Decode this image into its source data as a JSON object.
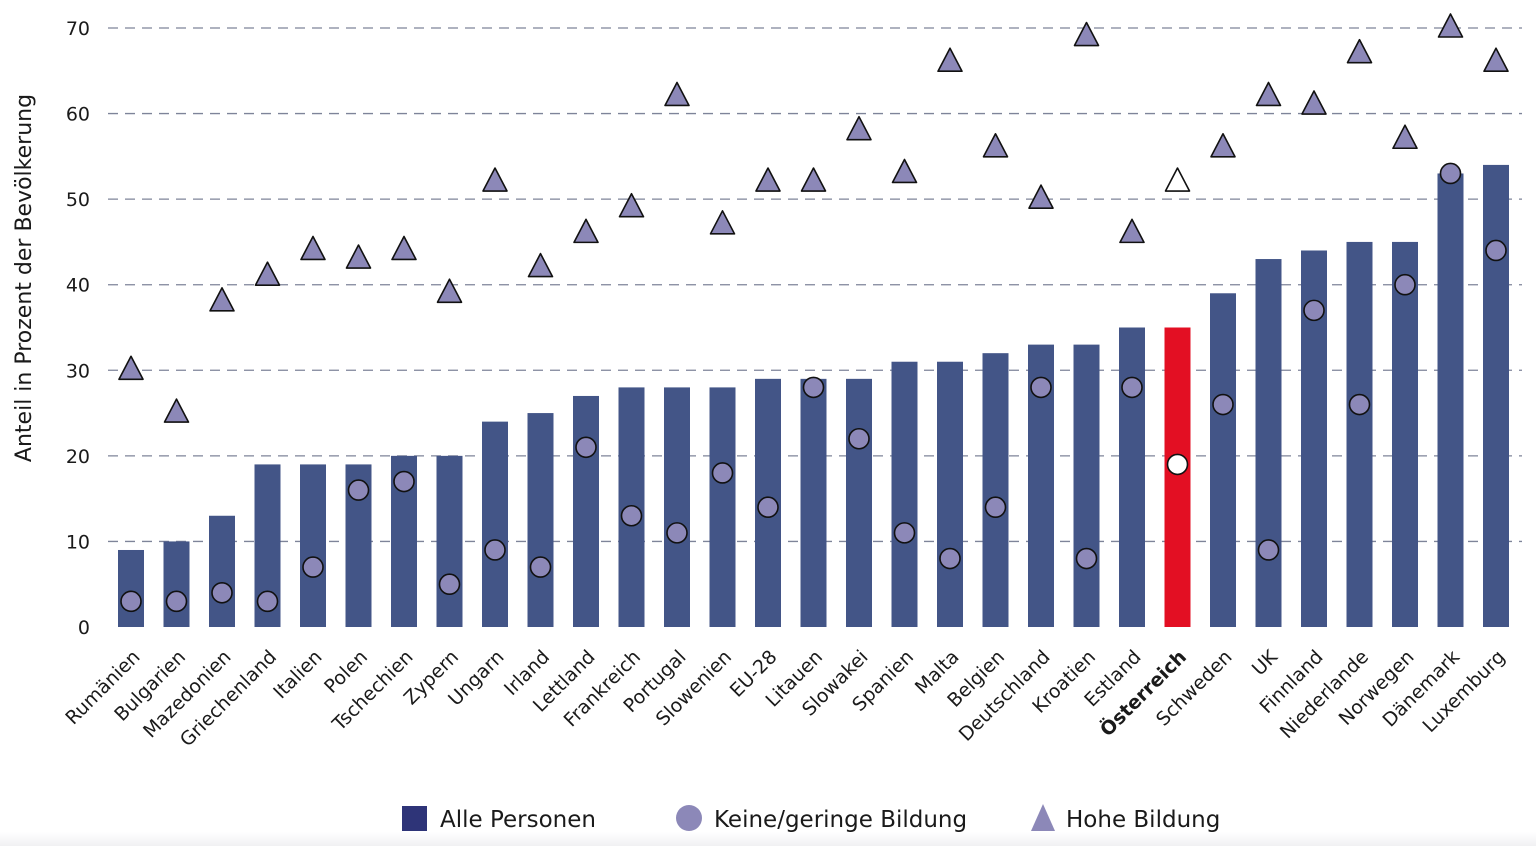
{
  "chart_data": {
    "type": "bar",
    "title": "",
    "xlabel": "",
    "ylabel": "Anteil in Prozent der Bevölkerung",
    "ylim": [
      0,
      70
    ],
    "yticks": [
      0,
      10,
      20,
      30,
      40,
      50,
      60,
      70
    ],
    "grid": true,
    "legend_position": "bottom",
    "highlight_category": "Österreich",
    "colors": {
      "bar": "#435587",
      "highlight_bar": "#e30f23",
      "marker": "#8c88b8",
      "highlight_marker": "#ffffff",
      "marker_stroke": "#111111",
      "legend_square": "#2e3478"
    },
    "categories": [
      "Rumänien",
      "Bulgarien",
      "Mazedonien",
      "Griechenland",
      "Italien",
      "Polen",
      "Tschechien",
      "Zypern",
      "Ungarn",
      "Irland",
      "Lettland",
      "Frankreich",
      "Portugal",
      "Slowenien",
      "EU-28",
      "Litauen",
      "Slowakei",
      "Spanien",
      "Malta",
      "Belgien",
      "Deutschland",
      "Kroatien",
      "Estland",
      "Österreich",
      "Schweden",
      "UK",
      "Finnland",
      "Niederlande",
      "Norwegen",
      "Dänemark",
      "Luxemburg"
    ],
    "series": [
      {
        "name": "Alle Personen",
        "kind": "bar",
        "values": [
          9,
          10,
          13,
          19,
          19,
          19,
          20,
          20,
          24,
          25,
          27,
          28,
          28,
          28,
          29,
          29,
          29,
          31,
          31,
          32,
          33,
          33,
          35,
          35,
          39,
          43,
          44,
          45,
          45,
          53,
          54
        ]
      },
      {
        "name": "Keine/geringe Bildung",
        "kind": "circle",
        "values": [
          3,
          3,
          4,
          3,
          7,
          16,
          17,
          5,
          9,
          7,
          21,
          13,
          11,
          18,
          14,
          28,
          22,
          11,
          8,
          14,
          28,
          8,
          28,
          19,
          26,
          9,
          37,
          26,
          40,
          53,
          44
        ]
      },
      {
        "name": "Hohe Bildung",
        "kind": "triangle",
        "values": [
          30,
          25,
          38,
          41,
          44,
          43,
          44,
          39,
          52,
          42,
          46,
          49,
          62,
          47,
          52,
          52,
          58,
          53,
          66,
          56,
          50,
          69,
          46,
          52,
          56,
          62,
          61,
          67,
          57,
          70,
          66
        ]
      }
    ]
  }
}
